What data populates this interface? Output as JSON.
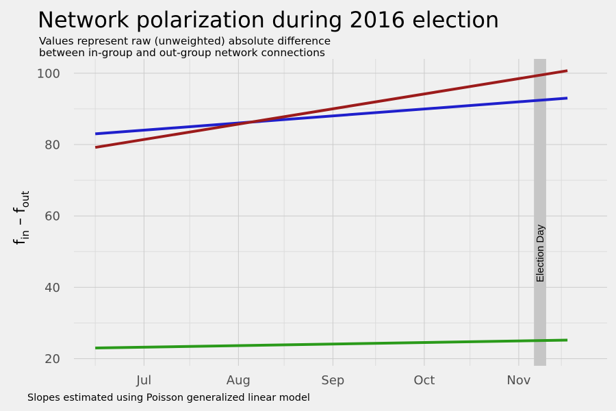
{
  "chart_data": {
    "type": "line",
    "title": "Network polarization during 2016 election",
    "subtitle": [
      "Values represent raw (unweighted) absolute difference",
      "between in-group and out-group network connections"
    ],
    "caption": "Slopes estimated using Poisson generalized linear model",
    "ylabel": {
      "base1": "f",
      "sub1": "in",
      "mid": " – ",
      "base2": "f",
      "sub2": "out"
    },
    "xlabel": "",
    "x_ticks": [
      {
        "label": "Jul",
        "date": "2016-07-01"
      },
      {
        "label": "Aug",
        "date": "2016-08-01"
      },
      {
        "label": "Sep",
        "date": "2016-09-01"
      },
      {
        "label": "Oct",
        "date": "2016-10-01"
      },
      {
        "label": "Nov",
        "date": "2016-11-01"
      }
    ],
    "xlim": [
      "2016-06-08",
      "2016-11-30"
    ],
    "y_ticks": [
      20,
      40,
      60,
      80,
      100
    ],
    "ylim": [
      18,
      104
    ],
    "grid": true,
    "legend": "none",
    "series": [
      {
        "color": "#1f1fcc",
        "x": [
          "2016-06-15",
          "2016-11-17"
        ],
        "y": [
          83,
          93
        ]
      },
      {
        "color": "#9c1b1b",
        "x": [
          "2016-06-15",
          "2016-11-17"
        ],
        "y": [
          79.2,
          100.7
        ]
      },
      {
        "color": "#2a9a1a",
        "x": [
          "2016-06-15",
          "2016-11-17"
        ],
        "y": [
          23,
          25.2
        ]
      }
    ],
    "annotations": [
      {
        "type": "vband",
        "x_start": "2016-11-06",
        "x_end": "2016-11-10",
        "color": "#c6c6c6",
        "label": "Election Day"
      }
    ]
  }
}
